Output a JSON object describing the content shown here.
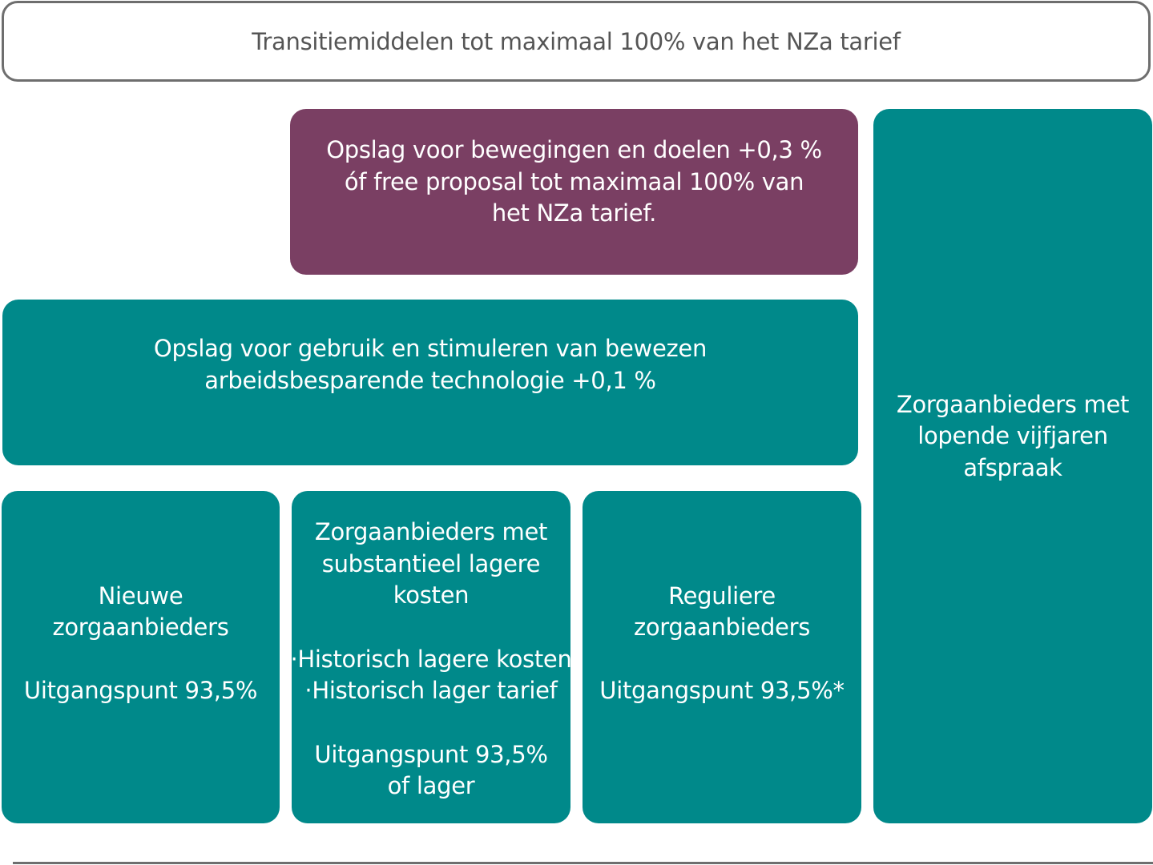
{
  "header": {
    "title": "Transitiemiddelen tot maximaal 100% van het NZa tarief"
  },
  "purple_box": {
    "lines": [
      "Opslag voor bewegingen en doelen +0,3 %",
      "óf free proposal tot maximaal 100% van",
      "het NZa tarief."
    ]
  },
  "technology_box": {
    "lines": [
      "Opslag voor gebruik en stimuleren van bewezen",
      "arbeidsbesparende technologie +0,1 %"
    ]
  },
  "five_year_box": {
    "lines": [
      "Zorgaanbieders met",
      "lopende vijfjaren",
      "afspraak"
    ]
  },
  "new_providers_box": {
    "title_lines": [
      "Nieuwe",
      "zorgaanbieders"
    ],
    "basis": "Uitgangspunt 93,5%"
  },
  "lower_costs_box": {
    "title_lines": [
      "Zorgaanbieders met",
      "substantieel lagere",
      "kosten"
    ],
    "bullets": [
      "·Historisch lagere kosten",
      "·Historisch lager tarief"
    ],
    "basis_lines": [
      "Uitgangspunt 93,5%",
      "of lager"
    ]
  },
  "regular_providers_box": {
    "title_lines": [
      "Reguliere",
      "zorgaanbieders"
    ],
    "basis": "Uitgangspunt 93,5%*"
  },
  "colors": {
    "teal": "#00898a",
    "purple": "#7a3f63",
    "header_border": "#6e6e6e",
    "header_text": "#555555"
  }
}
